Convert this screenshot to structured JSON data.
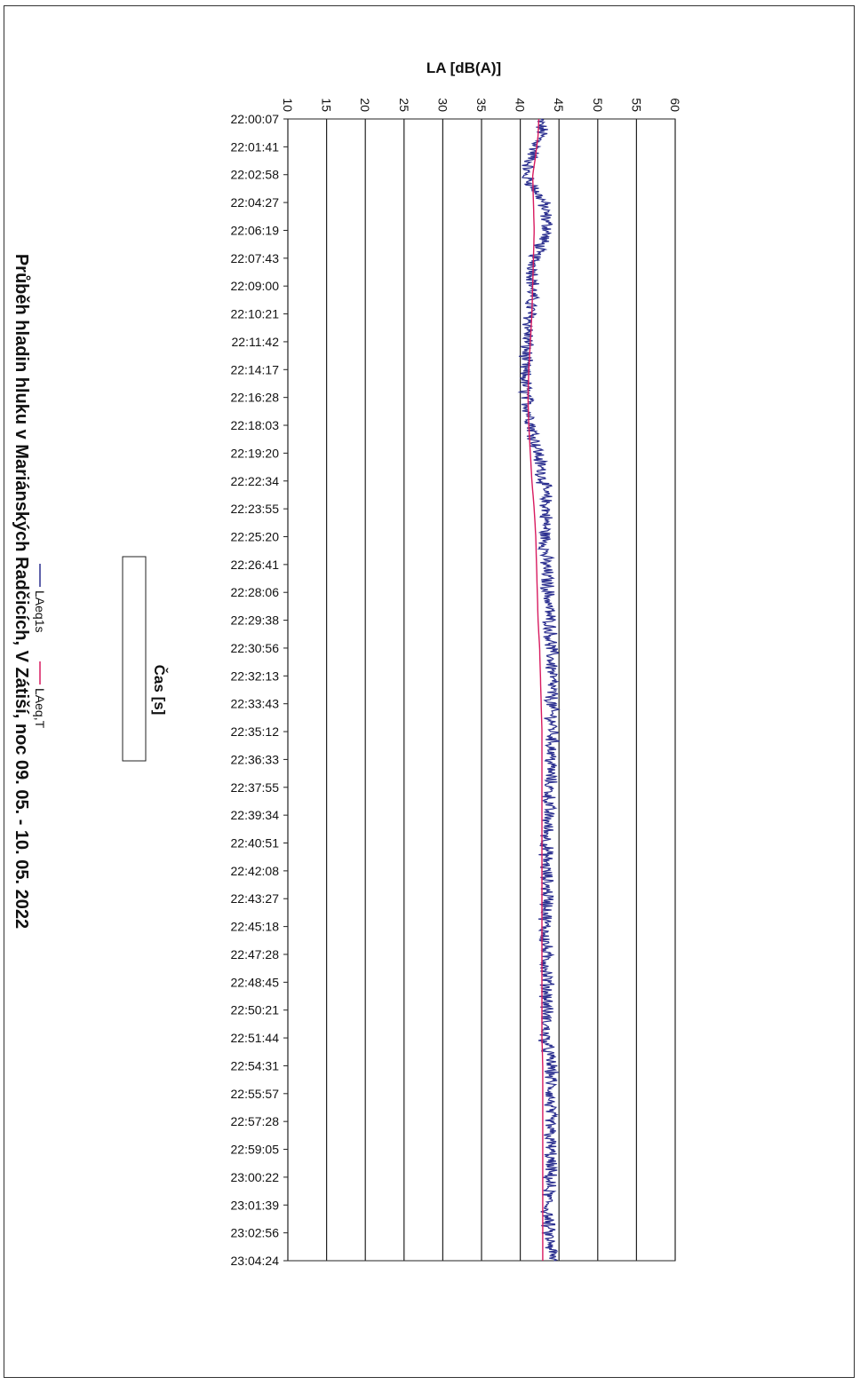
{
  "chart_data": {
    "type": "line",
    "title": "Průběh hladin hluku v Mariánských Radčicích, V Zátiší, noc 09. 05. - 10. 05. 2022",
    "xlabel": "Čas [s]",
    "ylabel": "LA [dB(A)]",
    "ylim": [
      10,
      60
    ],
    "yticks": [
      60,
      55,
      50,
      45,
      40,
      35,
      30,
      25,
      20,
      15,
      10
    ],
    "xtick_labels": [
      "22:00:07",
      "22:01:41",
      "22:02:58",
      "22:04:27",
      "22:06:19",
      "22:07:43",
      "22:09:00",
      "22:10:21",
      "22:11:42",
      "22:14:17",
      "22:16:28",
      "22:18:03",
      "22:19:20",
      "22:22:34",
      "22:23:55",
      "22:25:20",
      "22:26:41",
      "22:28:06",
      "22:29:38",
      "22:30:56",
      "22:32:13",
      "22:33:43",
      "22:35:12",
      "22:36:33",
      "22:37:55",
      "22:39:34",
      "22:40:51",
      "22:42:08",
      "22:43:27",
      "22:45:18",
      "22:47:28",
      "22:48:45",
      "22:50:21",
      "22:51:44",
      "22:54:31",
      "22:55:57",
      "22:57:28",
      "22:59:05",
      "23:00:22",
      "23:01:39",
      "23:02:56",
      "23:04:24"
    ],
    "grid": "major y",
    "legend": "bottom",
    "series": [
      {
        "name": "LAeq1s",
        "color": "#2b2f8f",
        "keypoints": [
          [
            0,
            42.5
          ],
          [
            0.5,
            42.8
          ],
          [
            1,
            42.0
          ],
          [
            1.6,
            41.2
          ],
          [
            2,
            40.6
          ],
          [
            2.4,
            41.6
          ],
          [
            3,
            43.0
          ],
          [
            4,
            43.6
          ],
          [
            4.6,
            42.5
          ],
          [
            5,
            41.8
          ],
          [
            6,
            41.6
          ],
          [
            7,
            41.3
          ],
          [
            8,
            40.9
          ],
          [
            9,
            40.5
          ],
          [
            10,
            40.8
          ],
          [
            11,
            41.5
          ],
          [
            12,
            42.3
          ],
          [
            13,
            43.0
          ],
          [
            14,
            43.4
          ],
          [
            15,
            43.2
          ],
          [
            16,
            43.3
          ],
          [
            17,
            43.6
          ],
          [
            18,
            43.8
          ],
          [
            19,
            44.0
          ],
          [
            20,
            44.1
          ],
          [
            21,
            44.0
          ],
          [
            22,
            44.2
          ],
          [
            23,
            44.0
          ],
          [
            24,
            43.8
          ],
          [
            25,
            43.6
          ],
          [
            26,
            43.4
          ],
          [
            27,
            43.3
          ],
          [
            28,
            43.6
          ],
          [
            29,
            43.2
          ],
          [
            30,
            43.3
          ],
          [
            31,
            43.5
          ],
          [
            32,
            43.4
          ],
          [
            33,
            43.2
          ],
          [
            34,
            44.0
          ],
          [
            35,
            43.9
          ],
          [
            36,
            43.8
          ],
          [
            37,
            43.9
          ],
          [
            38,
            43.8
          ],
          [
            39,
            43.5
          ],
          [
            40,
            43.6
          ],
          [
            41,
            44.2
          ]
        ],
        "amplitude": 0.8
      },
      {
        "name": "LAeq,T",
        "color": "#d81b60",
        "keypoints": [
          [
            0,
            42.4
          ],
          [
            0.6,
            42.3
          ],
          [
            1.5,
            41.9
          ],
          [
            2,
            41.6
          ],
          [
            3,
            41.7
          ],
          [
            4,
            41.8
          ],
          [
            5,
            41.7
          ],
          [
            6,
            41.6
          ],
          [
            7,
            41.5
          ],
          [
            8,
            41.3
          ],
          [
            9,
            41.1
          ],
          [
            10,
            41.0
          ],
          [
            11,
            41.1
          ],
          [
            12,
            41.3
          ],
          [
            13,
            41.5
          ],
          [
            14,
            41.8
          ],
          [
            15,
            42.0
          ],
          [
            16,
            42.1
          ],
          [
            17,
            42.2
          ],
          [
            18,
            42.3
          ],
          [
            19,
            42.5
          ],
          [
            20,
            42.6
          ],
          [
            21,
            42.7
          ],
          [
            22,
            42.8
          ],
          [
            23,
            42.8
          ],
          [
            24,
            42.8
          ],
          [
            25,
            42.8
          ],
          [
            26,
            42.8
          ],
          [
            27,
            42.8
          ],
          [
            28,
            42.8
          ],
          [
            29,
            42.8
          ],
          [
            30,
            42.8
          ],
          [
            31,
            42.8
          ],
          [
            32,
            42.8
          ],
          [
            33,
            42.8
          ],
          [
            34,
            42.9
          ],
          [
            35,
            42.9
          ],
          [
            36,
            42.9
          ],
          [
            37,
            42.9
          ],
          [
            38,
            42.9
          ],
          [
            39,
            42.9
          ],
          [
            40,
            42.9
          ],
          [
            41,
            42.9
          ]
        ]
      }
    ]
  }
}
